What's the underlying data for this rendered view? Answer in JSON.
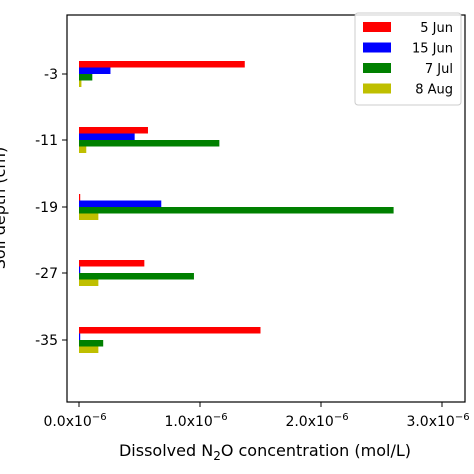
{
  "chart_data": {
    "type": "bar",
    "orientation": "horizontal",
    "categories": [
      "-3",
      "-11",
      "-19",
      "-27",
      "-35"
    ],
    "series": [
      {
        "name": "5 Jun",
        "color": "#ff0000",
        "values": [
          1.37e-06,
          5.7e-07,
          1e-08,
          5.4e-07,
          1.5e-06
        ]
      },
      {
        "name": "15 Jun",
        "color": "#0000ff",
        "values": [
          2.6e-07,
          4.6e-07,
          6.8e-07,
          1e-08,
          1e-08
        ]
      },
      {
        "name": "7 Jul",
        "color": "#008000",
        "values": [
          1.1e-07,
          1.16e-06,
          2.6e-06,
          9.5e-07,
          2e-07
        ]
      },
      {
        "name": "8 Aug",
        "color": "#bfbf00",
        "values": [
          2e-08,
          6e-08,
          1.6e-07,
          1.6e-07,
          1.6e-07
        ]
      }
    ],
    "xlabel_prefix": "Dissolved N",
    "xlabel_subscript": "2",
    "xlabel_suffix": "O concentration (mol/L)",
    "ylabel": "Soil depth (cm)",
    "xlim": [
      0,
      3e-06
    ],
    "xticks": [
      0,
      1e-06,
      2e-06,
      3e-06
    ],
    "xtick_labels": [
      {
        "base": "0.0x10",
        "exp": "−6"
      },
      {
        "base": "1.0x10",
        "exp": "−6"
      },
      {
        "base": "2.0x10",
        "exp": "−6"
      },
      {
        "base": "3.0x10",
        "exp": "−6"
      }
    ],
    "grid": false,
    "legend_position": "top-right"
  }
}
